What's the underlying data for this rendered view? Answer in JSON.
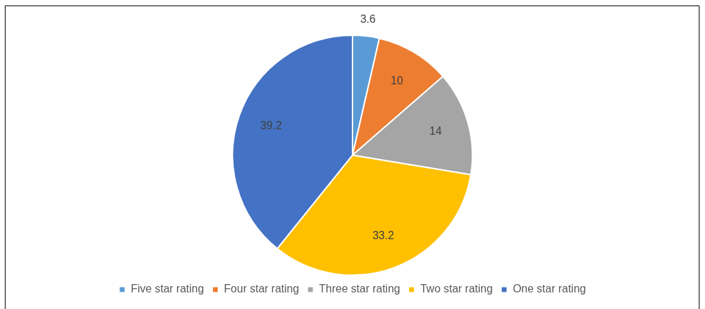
{
  "chart_data": {
    "type": "pie",
    "categories": [
      "Five star rating",
      "Four star rating",
      "Three star rating",
      "Two star rating",
      "One star rating"
    ],
    "values": [
      3.6,
      10,
      14,
      33.2,
      39.2
    ],
    "colors": [
      "#5b9bd5",
      "#ed7d31",
      "#a5a5a5",
      "#ffc000",
      "#4472c4"
    ],
    "data_labels": true,
    "legend": "bottom"
  }
}
